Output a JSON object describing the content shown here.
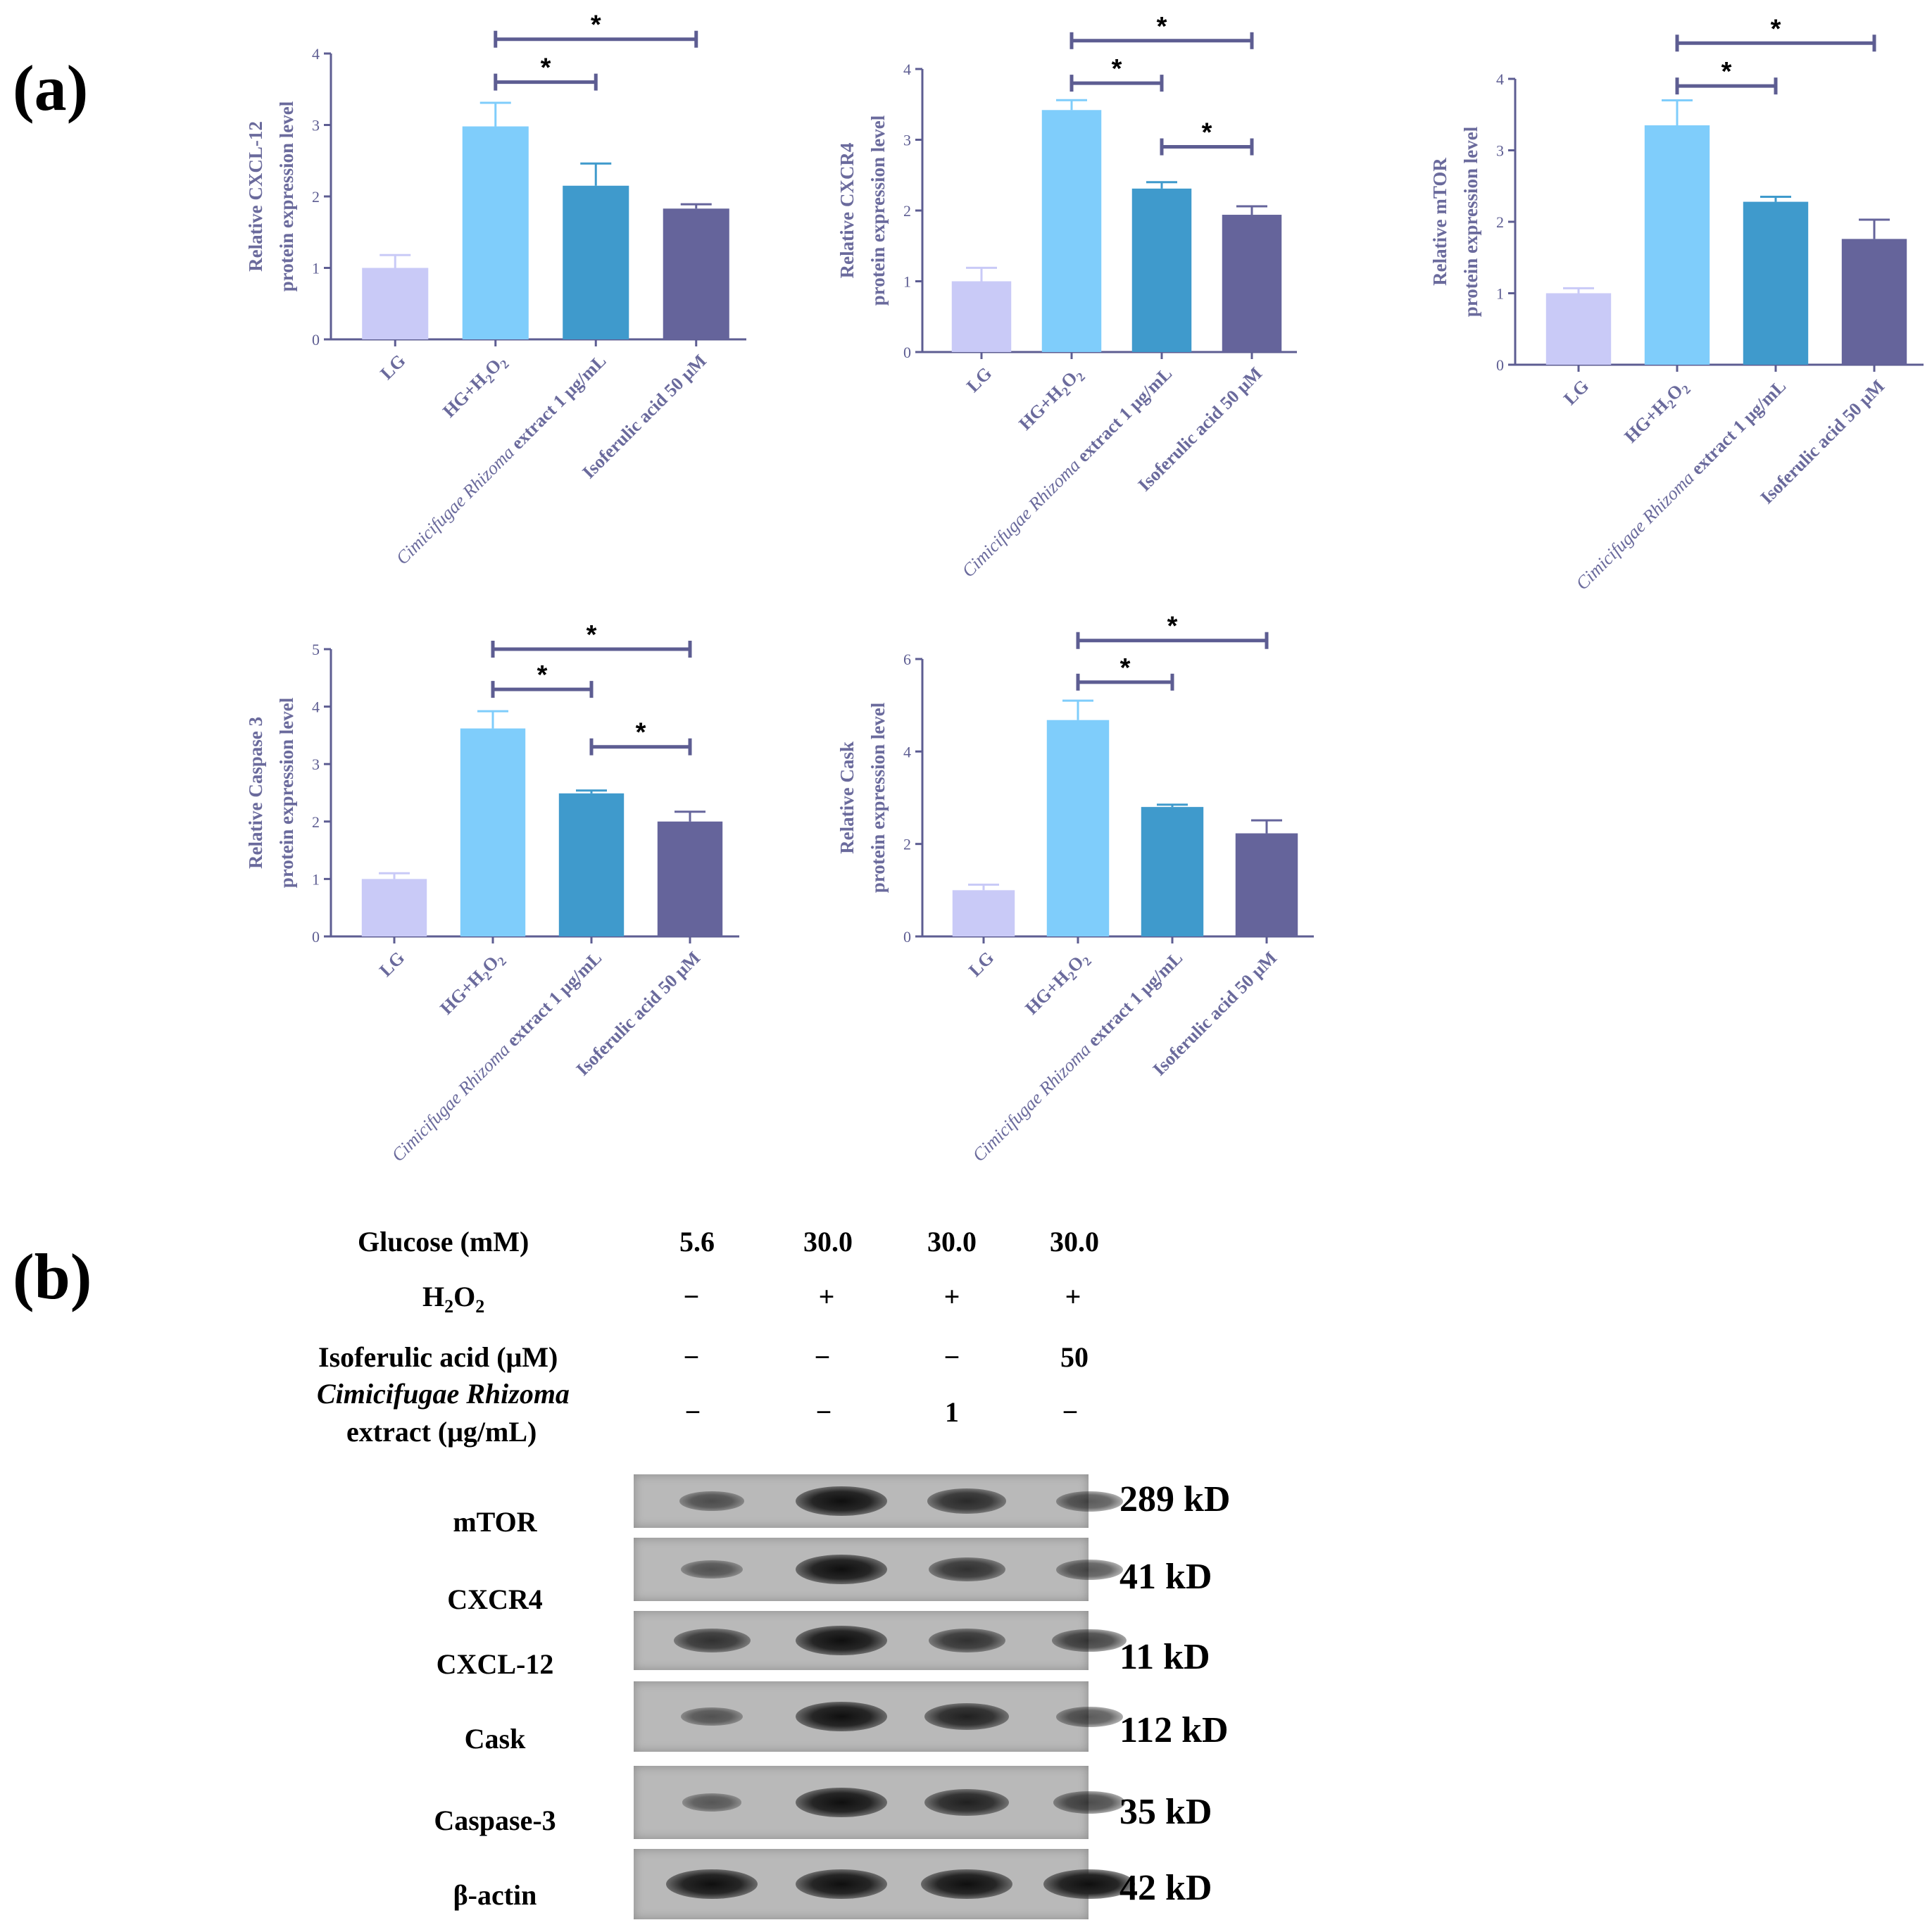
{
  "panels": {
    "a": "(a)",
    "b": "(b)"
  },
  "colors": {
    "axis": "#5d5d92",
    "bars": [
      "#c9caf7",
      "#7fcdfb",
      "#3f9acc",
      "#65649b"
    ],
    "err_lg": "#c9caf7"
  },
  "chart_data": [
    {
      "type": "bar",
      "ylabel": [
        "Relative CXCL-12",
        "protein expression level"
      ],
      "categories": [
        "LG",
        "HG+H2O2",
        "Cimicifugae Rhizoma extract 1 μg/mL",
        "Isoferulic acid 50 μM"
      ],
      "values": [
        1.0,
        2.98,
        2.15,
        1.83
      ],
      "errors": [
        0.18,
        0.33,
        0.31,
        0.06
      ],
      "ylim": [
        0,
        4
      ],
      "yticks": [
        "0",
        "1",
        "2",
        "3",
        "4"
      ],
      "significance": [
        {
          "from": 1,
          "to": 3,
          "y": 4.2,
          "label": "*"
        },
        {
          "from": 1,
          "to": 2,
          "y": 3.6,
          "label": "*"
        }
      ]
    },
    {
      "type": "bar",
      "ylabel": [
        "Relative CXCR4",
        "protein expression level"
      ],
      "categories": [
        "LG",
        "HG+H2O2",
        "Cimicifugae Rhizoma extract 1 μg/mL",
        "Isoferulic acid 50 μM"
      ],
      "values": [
        1.0,
        3.42,
        2.31,
        1.94
      ],
      "errors": [
        0.19,
        0.14,
        0.09,
        0.12
      ],
      "ylim": [
        0,
        4
      ],
      "yticks": [
        "0",
        "1",
        "2",
        "3",
        "4"
      ],
      "significance": [
        {
          "from": 1,
          "to": 3,
          "y": 4.4,
          "label": "*"
        },
        {
          "from": 1,
          "to": 2,
          "y": 3.8,
          "label": "*"
        },
        {
          "from": 2,
          "to": 3,
          "y": 2.9,
          "label": "*"
        }
      ]
    },
    {
      "type": "bar",
      "ylabel": [
        "Relative mTOR",
        "protein expression level"
      ],
      "categories": [
        "LG",
        "HG+H2O2",
        "Cimicifugae Rhizoma extract 1 μg/mL",
        "Isoferulic acid 50 μM"
      ],
      "values": [
        1.0,
        3.35,
        2.28,
        1.76
      ],
      "errors": [
        0.07,
        0.35,
        0.07,
        0.27
      ],
      "ylim": [
        0,
        4
      ],
      "yticks": [
        "0",
        "1",
        "2",
        "3",
        "4"
      ],
      "significance": [
        {
          "from": 1,
          "to": 3,
          "y": 4.5,
          "label": "*"
        },
        {
          "from": 1,
          "to": 2,
          "y": 3.9,
          "label": "*"
        }
      ]
    },
    {
      "type": "bar",
      "ylabel": [
        "Relative Caspase 3",
        "protein expression level"
      ],
      "categories": [
        "LG",
        "HG+H2O2",
        "Cimicifugae Rhizoma extract 1 μg/mL",
        "Isoferulic acid 50 μM"
      ],
      "values": [
        1.0,
        3.62,
        2.49,
        2.0
      ],
      "errors": [
        0.1,
        0.3,
        0.05,
        0.17
      ],
      "ylim": [
        0,
        5
      ],
      "yticks": [
        "0",
        "1",
        "2",
        "3",
        "4",
        "5"
      ],
      "significance": [
        {
          "from": 1,
          "to": 3,
          "y": 5.0,
          "label": "*"
        },
        {
          "from": 1,
          "to": 2,
          "y": 4.3,
          "label": "*"
        },
        {
          "from": 2,
          "to": 3,
          "y": 3.3,
          "label": "*"
        }
      ]
    },
    {
      "type": "bar",
      "ylabel": [
        "Relative Cask",
        "protein expression level"
      ],
      "categories": [
        "LG",
        "HG+H2O2",
        "Cimicifugae Rhizoma extract 1 μg/mL",
        "Isoferulic acid 50 μM"
      ],
      "values": [
        1.0,
        4.68,
        2.8,
        2.23
      ],
      "errors": [
        0.12,
        0.42,
        0.05,
        0.28
      ],
      "ylim": [
        0,
        6
      ],
      "yticks": [
        "0",
        "2",
        "4",
        "6"
      ],
      "significance": [
        {
          "from": 1,
          "to": 3,
          "y": 6.4,
          "label": "*"
        },
        {
          "from": 1,
          "to": 2,
          "y": 5.5,
          "label": "*"
        }
      ]
    }
  ],
  "conditions": {
    "glucose": {
      "label": "Glucose (mM)",
      "values": [
        "5.6",
        "30.0",
        "30.0",
        "30.0"
      ]
    },
    "h2o2": {
      "label": "H",
      "sub": "2",
      "label2": "O",
      "sub2": "2",
      "values": [
        "−",
        "+",
        "+",
        "+"
      ]
    },
    "isoferulic": {
      "label": "Isoferulic acid (μM)",
      "values": [
        "−",
        "−",
        "−",
        "50"
      ]
    },
    "extract": {
      "label_line1": "Cimicifugae Rhizoma",
      "label_line2": "extract (μg/mL)",
      "values": [
        "−",
        "−",
        "1",
        "−"
      ]
    }
  },
  "blots": [
    {
      "name": "mTOR",
      "kd": "289 kD",
      "intensity": [
        0.45,
        1.0,
        0.75,
        0.5
      ]
    },
    {
      "name": "CXCR4",
      "kd": "41 kD",
      "intensity": [
        0.4,
        1.0,
        0.7,
        0.5
      ]
    },
    {
      "name": "CXCL-12",
      "kd": "11 kD",
      "intensity": [
        0.7,
        1.0,
        0.7,
        0.65
      ]
    },
    {
      "name": "Cask",
      "kd": "112 kD",
      "intensity": [
        0.4,
        1.0,
        0.85,
        0.5
      ]
    },
    {
      "name": "Caspase-3",
      "kd": "35 kD",
      "intensity": [
        0.35,
        1.0,
        0.85,
        0.6
      ]
    },
    {
      "name": "β-actin",
      "kd": "42 kD",
      "intensity": [
        1.0,
        1.0,
        1.0,
        1.0
      ]
    }
  ]
}
